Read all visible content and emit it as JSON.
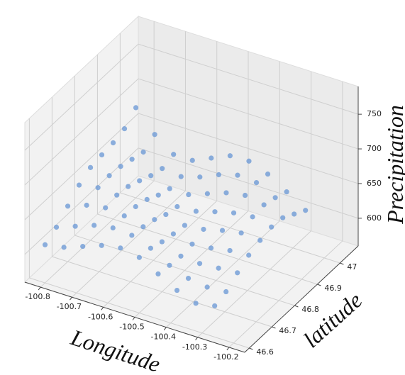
{
  "chart_data": {
    "type": "scatter3d",
    "x_label": "Longitude",
    "y_label": "latitude",
    "z_label": "Precipitation",
    "color": "#6f9bd6",
    "xlim": [
      -100.85,
      -100.15
    ],
    "ylim": [
      46.58,
      47.08
    ],
    "zlim": [
      560,
      790
    ],
    "xticks": [
      -100.8,
      -100.7,
      -100.6,
      -100.5,
      -100.4,
      -100.3,
      -100.2
    ],
    "yticks": [
      46.6,
      46.7,
      46.8,
      46.9,
      47.0
    ],
    "zticks": [
      600,
      650,
      700,
      750
    ],
    "x": [
      -100.8,
      -100.74,
      -100.68,
      -100.62,
      -100.56,
      -100.5,
      -100.44,
      -100.38,
      -100.32,
      -100.26,
      -100.8,
      -100.74,
      -100.68,
      -100.62,
      -100.56,
      -100.5,
      -100.44,
      -100.38,
      -100.32,
      -100.26,
      -100.8,
      -100.74,
      -100.68,
      -100.62,
      -100.56,
      -100.5,
      -100.44,
      -100.38,
      -100.32,
      -100.26,
      -100.8,
      -100.74,
      -100.68,
      -100.62,
      -100.56,
      -100.5,
      -100.44,
      -100.38,
      -100.32,
      -100.26,
      -100.8,
      -100.74,
      -100.68,
      -100.62,
      -100.56,
      -100.5,
      -100.44,
      -100.38,
      -100.32,
      -100.26,
      -100.8,
      -100.74,
      -100.68,
      -100.62,
      -100.56,
      -100.5,
      -100.44,
      -100.38,
      -100.32,
      -100.26,
      -100.8,
      -100.74,
      -100.68,
      -100.62,
      -100.56,
      -100.5,
      -100.44,
      -100.38,
      -100.32,
      -100.26,
      -100.8,
      -100.74,
      -100.68,
      -100.62,
      -100.56,
      -100.5,
      -100.44,
      -100.38,
      -100.32,
      -100.26,
      -100.8,
      -100.74,
      -100.68,
      -100.62,
      -100.56,
      -100.5,
      -100.44,
      -100.38,
      -100.32,
      -100.26
    ],
    "y": [
      46.6,
      46.6,
      46.6,
      46.6,
      46.6,
      46.6,
      46.6,
      46.6,
      46.6,
      46.6,
      46.65,
      46.65,
      46.65,
      46.65,
      46.65,
      46.65,
      46.65,
      46.65,
      46.65,
      46.65,
      46.7,
      46.7,
      46.7,
      46.7,
      46.7,
      46.7,
      46.7,
      46.7,
      46.7,
      46.7,
      46.75,
      46.75,
      46.75,
      46.75,
      46.75,
      46.75,
      46.75,
      46.75,
      46.75,
      46.75,
      46.8,
      46.8,
      46.8,
      46.8,
      46.8,
      46.8,
      46.8,
      46.8,
      46.8,
      46.8,
      46.85,
      46.85,
      46.85,
      46.85,
      46.85,
      46.85,
      46.85,
      46.85,
      46.85,
      46.85,
      46.9,
      46.9,
      46.9,
      46.9,
      46.9,
      46.9,
      46.9,
      46.9,
      46.9,
      46.9,
      46.95,
      46.95,
      46.95,
      46.95,
      46.95,
      46.95,
      46.95,
      46.95,
      46.95,
      46.95,
      47.0,
      47.0,
      47.0,
      47.0,
      47.0,
      47.0,
      47.0,
      47.0,
      47.0,
      47.0
    ],
    "z": [
      615,
      620,
      630,
      640,
      645,
      640,
      625,
      610,
      600,
      605,
      625,
      635,
      645,
      650,
      648,
      638,
      622,
      612,
      608,
      610,
      640,
      650,
      655,
      652,
      645,
      632,
      620,
      618,
      620,
      622,
      655,
      660,
      658,
      650,
      640,
      628,
      622,
      625,
      630,
      632,
      665,
      662,
      655,
      645,
      632,
      625,
      628,
      635,
      640,
      638,
      668,
      660,
      648,
      636,
      628,
      630,
      638,
      645,
      648,
      642,
      670,
      655,
      640,
      630,
      630,
      640,
      650,
      655,
      650,
      640,
      675,
      650,
      635,
      632,
      640,
      652,
      660,
      658,
      645,
      630,
      690,
      660,
      640,
      640,
      652,
      664,
      665,
      655,
      638,
      620
    ]
  }
}
